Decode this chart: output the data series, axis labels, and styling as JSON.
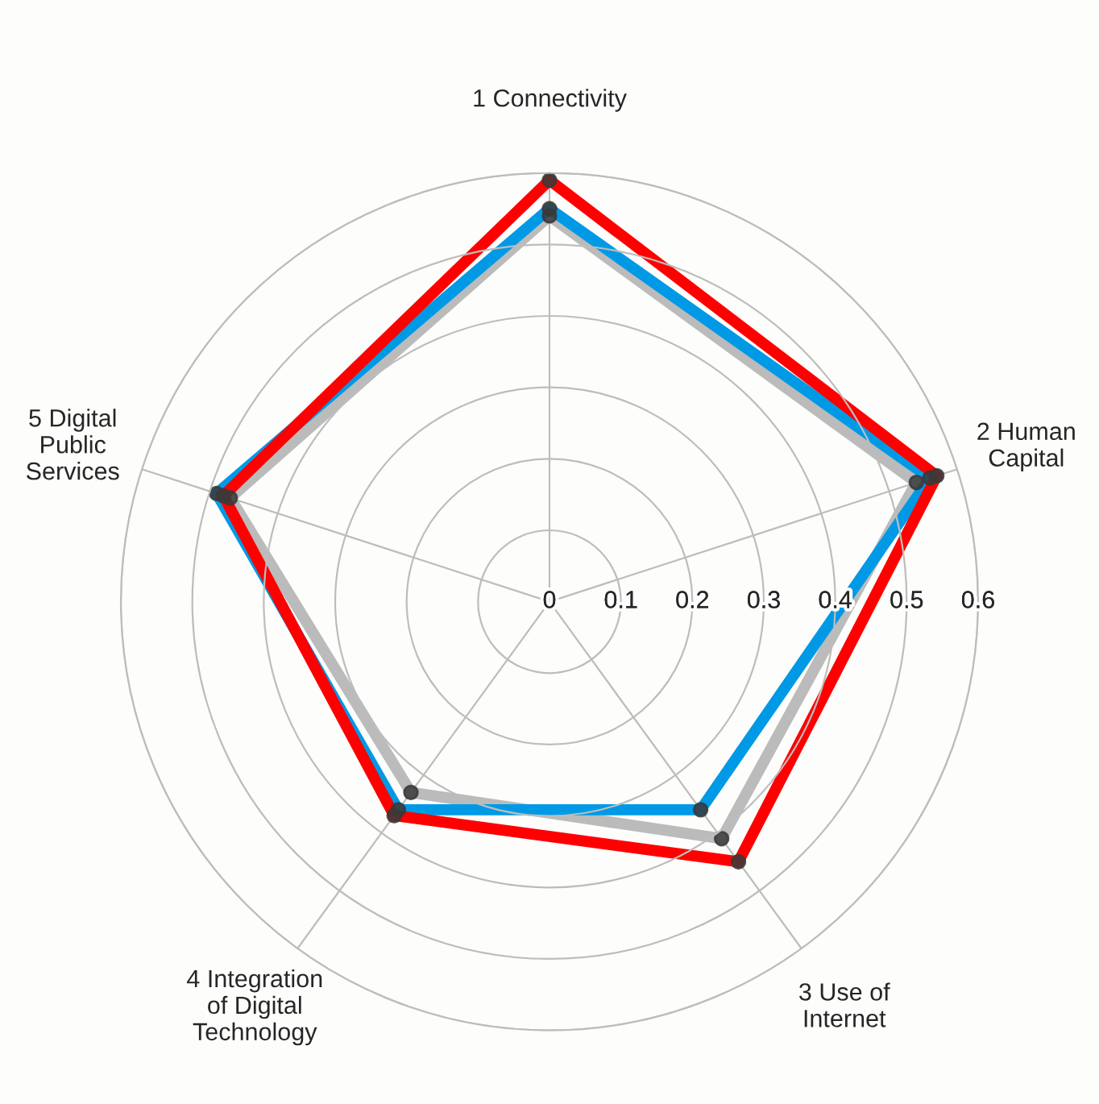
{
  "chart_data": {
    "type": "radar",
    "categories": [
      "1 Connectivity",
      "2 Human\nCapital",
      "3 Use of\nInternet",
      "4 Integration\nof Digital\nTechnology",
      "5 Digital\nPublic\nServices"
    ],
    "series": [
      {
        "color": "#bbbbbb",
        "values": [
          0.54,
          0.54,
          0.41,
          0.33,
          0.47
        ]
      },
      {
        "color": "#0099e6",
        "values": [
          0.55,
          0.56,
          0.36,
          0.36,
          0.49
        ]
      },
      {
        "color": "#ff0000",
        "values": [
          0.59,
          0.57,
          0.45,
          0.37,
          0.48
        ]
      }
    ],
    "ylim": [
      0,
      0.6
    ],
    "yticks": [
      0,
      0.1,
      0.2,
      0.3,
      0.4,
      0.5,
      0.6
    ],
    "grid": true,
    "marker": "circle",
    "legend": false
  }
}
